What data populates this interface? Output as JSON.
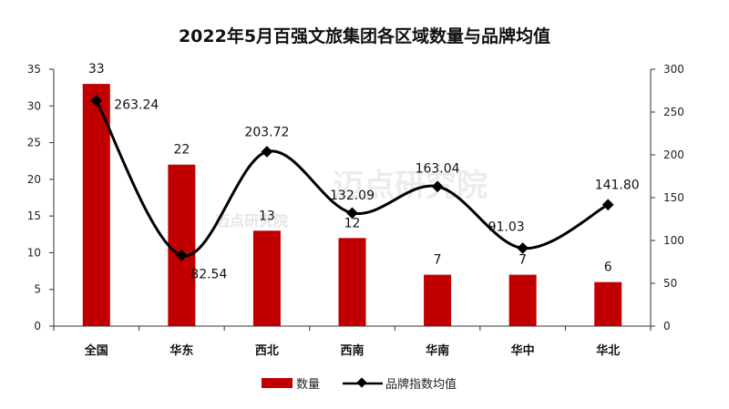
{
  "chart_data": {
    "type": "bar",
    "title": "2022年5月百强文旅集团各区域数量与品牌均值",
    "categories": [
      "全国",
      "华东",
      "西北",
      "西南",
      "华南",
      "华中",
      "华北"
    ],
    "series": [
      {
        "name": "数量",
        "type": "bar",
        "axis": "left",
        "color": "#c00000",
        "values": [
          33,
          22,
          13,
          12,
          7,
          7,
          6
        ],
        "labels": [
          "33",
          "22",
          "13",
          "12",
          "7",
          "7",
          "6"
        ]
      },
      {
        "name": "品牌指数均值",
        "type": "line",
        "axis": "right",
        "color": "#000000",
        "values": [
          263.24,
          82.54,
          203.72,
          132.09,
          163.04,
          91.03,
          141.8
        ],
        "labels": [
          "263.24",
          "82.54",
          "203.72",
          "132.09",
          "163.04",
          "91.03",
          "141.80"
        ]
      }
    ],
    "y_left": {
      "min": 0,
      "max": 35,
      "ticks": [
        "0",
        "5",
        "10",
        "15",
        "20",
        "25",
        "30",
        "35"
      ]
    },
    "y_right": {
      "min": 0,
      "max": 300,
      "ticks": [
        "0",
        "50",
        "100",
        "150",
        "200",
        "250",
        "300"
      ]
    },
    "legend": "bottom",
    "grid": false
  },
  "watermark": "迈点研究院"
}
